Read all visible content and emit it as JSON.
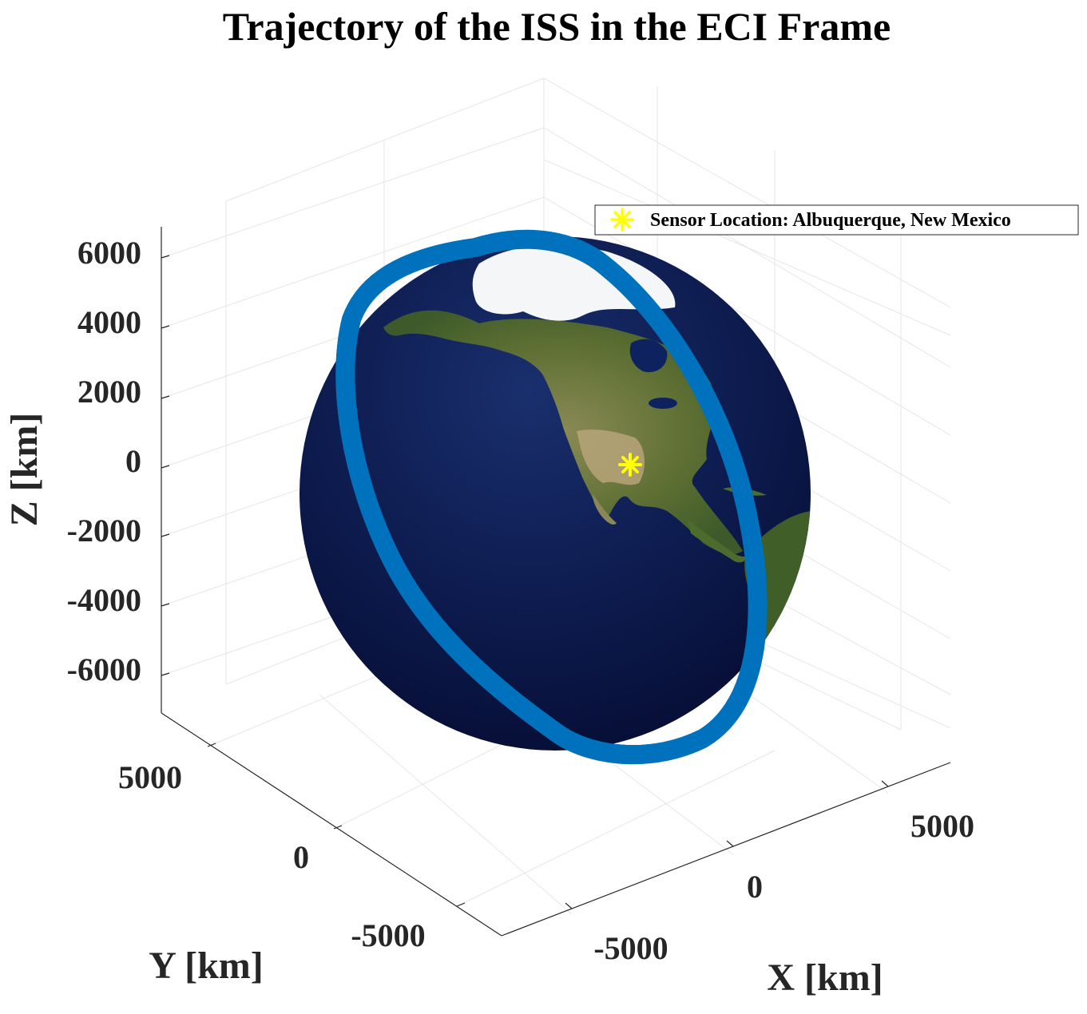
{
  "chart_data": {
    "type": "3d-surface-with-trajectory",
    "title": "Trajectory of the ISS in the ECI Frame",
    "xlabel": "X [km]",
    "ylabel": "Y [km]",
    "zlabel": "Z [km]",
    "x_ticks": [
      "-5000",
      "0",
      "5000"
    ],
    "y_ticks": [
      "-5000",
      "0",
      "5000"
    ],
    "z_ticks": [
      "6000",
      "4000",
      "2000",
      "0",
      "-2000",
      "-4000",
      "-6000"
    ],
    "xlim": [
      -7000,
      7000
    ],
    "ylim": [
      -7000,
      7000
    ],
    "zlim": [
      -7000,
      7000
    ],
    "grid": true,
    "earth": {
      "surface": "Earth texture map",
      "radius_km": 6378
    },
    "series": [
      {
        "type": "trajectory",
        "color": "#0072BD",
        "altitude_km": 420,
        "inclination_deg": 51.6
      },
      {
        "type": "marker",
        "name": "Sensor Location: Albuquerque, New Mexico",
        "marker": "asterisk",
        "color": "#FFFF00",
        "lat_deg": 35.08,
        "lon_deg": -106.65
      }
    ],
    "legend": {
      "entries": [
        "Sensor Location: Albuquerque, New Mexico"
      ],
      "location": "top-right"
    }
  }
}
